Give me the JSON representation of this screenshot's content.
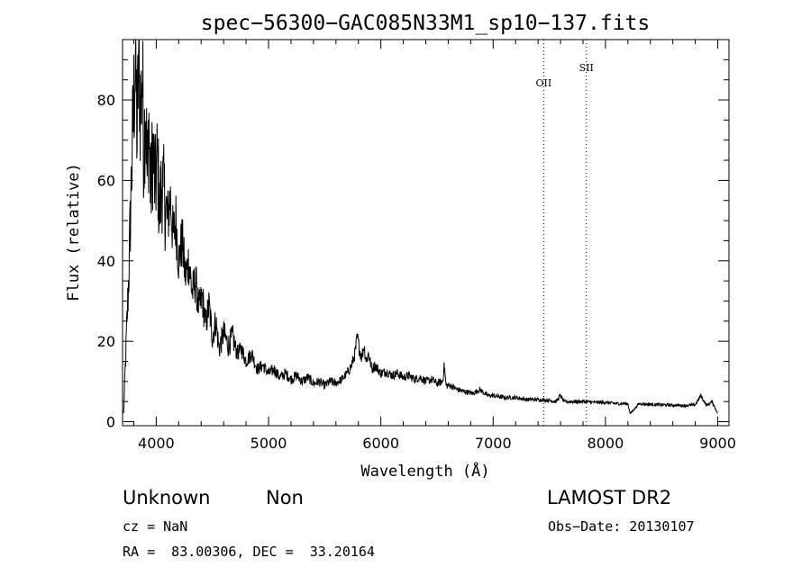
{
  "chart_data": {
    "type": "line",
    "title": "spec−56300−GAC085N33M1_sp10−137.fits",
    "xlabel": "Wavelength (Å)",
    "ylabel": "Flux (relative)",
    "xlim": [
      3700,
      9100
    ],
    "ylim": [
      -1,
      95
    ],
    "x_ticks": [
      4000,
      5000,
      6000,
      7000,
      8000,
      9000
    ],
    "y_ticks": [
      0,
      20,
      40,
      60,
      80
    ],
    "grid": false,
    "line_color": "#000000",
    "series": [
      {
        "x": [
          3710,
          3720,
          3740,
          3760,
          3780,
          3800,
          3815,
          3830,
          3845,
          3860,
          3875,
          3890,
          3905,
          3920,
          3935,
          3950,
          3970,
          3990,
          4010,
          4030,
          4050,
          4075,
          4100,
          4125,
          4150,
          4175,
          4200,
          4230,
          4260,
          4290,
          4320,
          4350,
          4380,
          4410,
          4440,
          4470,
          4500,
          4530,
          4560,
          4600,
          4640,
          4680,
          4720,
          4760,
          4800,
          4850,
          4900,
          4950,
          5000,
          5050,
          5100,
          5150,
          5200,
          5250,
          5300,
          5350,
          5400,
          5450,
          5500,
          5550,
          5600,
          5650,
          5700,
          5740,
          5770,
          5790,
          5810,
          5830,
          5850,
          5870,
          5890,
          5920,
          5950,
          6000,
          6050,
          6100,
          6150,
          6200,
          6250,
          6300,
          6350,
          6400,
          6450,
          6500,
          6550,
          6565,
          6580,
          6620,
          6680,
          6750,
          6820,
          6880,
          6950,
          7000,
          7100,
          7200,
          7300,
          7400,
          7500,
          7560,
          7600,
          7630,
          7700,
          7800,
          7900,
          8000,
          8100,
          8200,
          8220,
          8300,
          8400,
          8500,
          8600,
          8700,
          8800,
          8850,
          8900,
          8950,
          9000
        ],
        "y": [
          2,
          10,
          25,
          40,
          62,
          80,
          92,
          70,
          95,
          75,
          88,
          66,
          82,
          60,
          75,
          56,
          68,
          58,
          65,
          52,
          60,
          55,
          50,
          56,
          46,
          50,
          40,
          45,
          36,
          40,
          32,
          35,
          28,
          31,
          24,
          29,
          21,
          25,
          18,
          22,
          19,
          21,
          17,
          18,
          15,
          17,
          13,
          14,
          12,
          13,
          11,
          12,
          10.5,
          11.5,
          10,
          11,
          9.5,
          10,
          9,
          10,
          9.5,
          10.5,
          12,
          14,
          17,
          21,
          18,
          16,
          19,
          15,
          17,
          13,
          14,
          12,
          12.5,
          11.5,
          12,
          11,
          11.5,
          10.5,
          11,
          10,
          10.5,
          9.5,
          10,
          14,
          9,
          9,
          8,
          7.5,
          7,
          8,
          6.5,
          6.5,
          6,
          6,
          5.5,
          5.5,
          5.3,
          5,
          6.5,
          5,
          5,
          5,
          4.8,
          4.8,
          4.5,
          4.5,
          2,
          4.5,
          4.3,
          4.2,
          4.1,
          4.0,
          4.2,
          6.5,
          4,
          5,
          2
        ]
      }
    ],
    "annotations": [
      {
        "label": "OII",
        "x": 7450
      },
      {
        "label": "SII",
        "x": 7830
      }
    ]
  },
  "info": {
    "classification": "Unknown",
    "subclass": "Non",
    "survey": "LAMOST DR2",
    "cz": "cz = NaN",
    "obs_date": "Obs−Date: 20130107",
    "coords": "RA =  83.00306, DEC =  33.20164"
  }
}
